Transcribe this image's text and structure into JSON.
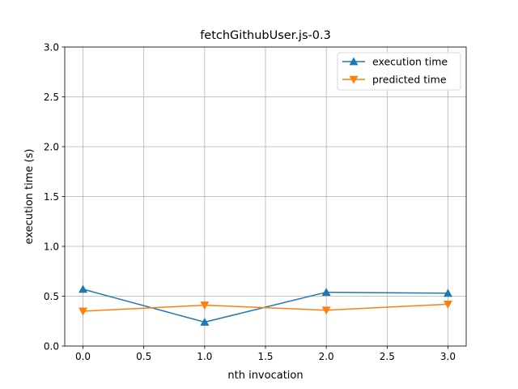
{
  "chart_data": {
    "type": "line",
    "title": "fetchGithubUser.js-0.3",
    "xlabel": "nth invocation",
    "ylabel": "execution time (s)",
    "xlim": [
      -0.15,
      3.15
    ],
    "ylim": [
      0,
      3.0
    ],
    "xticks": [
      0.0,
      0.5,
      1.0,
      1.5,
      2.0,
      2.5,
      3.0
    ],
    "xtick_labels": [
      "0.0",
      "0.5",
      "1.0",
      "1.5",
      "2.0",
      "2.5",
      "3.0"
    ],
    "yticks": [
      0.0,
      0.5,
      1.0,
      1.5,
      2.0,
      2.5,
      3.0
    ],
    "ytick_labels": [
      "0.0",
      "0.5",
      "1.0",
      "1.5",
      "2.0",
      "2.5",
      "3.0"
    ],
    "grid": true,
    "legend_position": "top-right",
    "x": [
      0,
      1,
      2,
      3
    ],
    "series": [
      {
        "name": "execution time",
        "values": [
          0.57,
          0.24,
          0.54,
          0.53
        ],
        "color": "#1f77b4",
        "marker": "triangle-up"
      },
      {
        "name": "predicted time",
        "values": [
          0.35,
          0.41,
          0.36,
          0.42
        ],
        "color": "#ff7f0e",
        "marker": "triangle-down"
      }
    ]
  }
}
